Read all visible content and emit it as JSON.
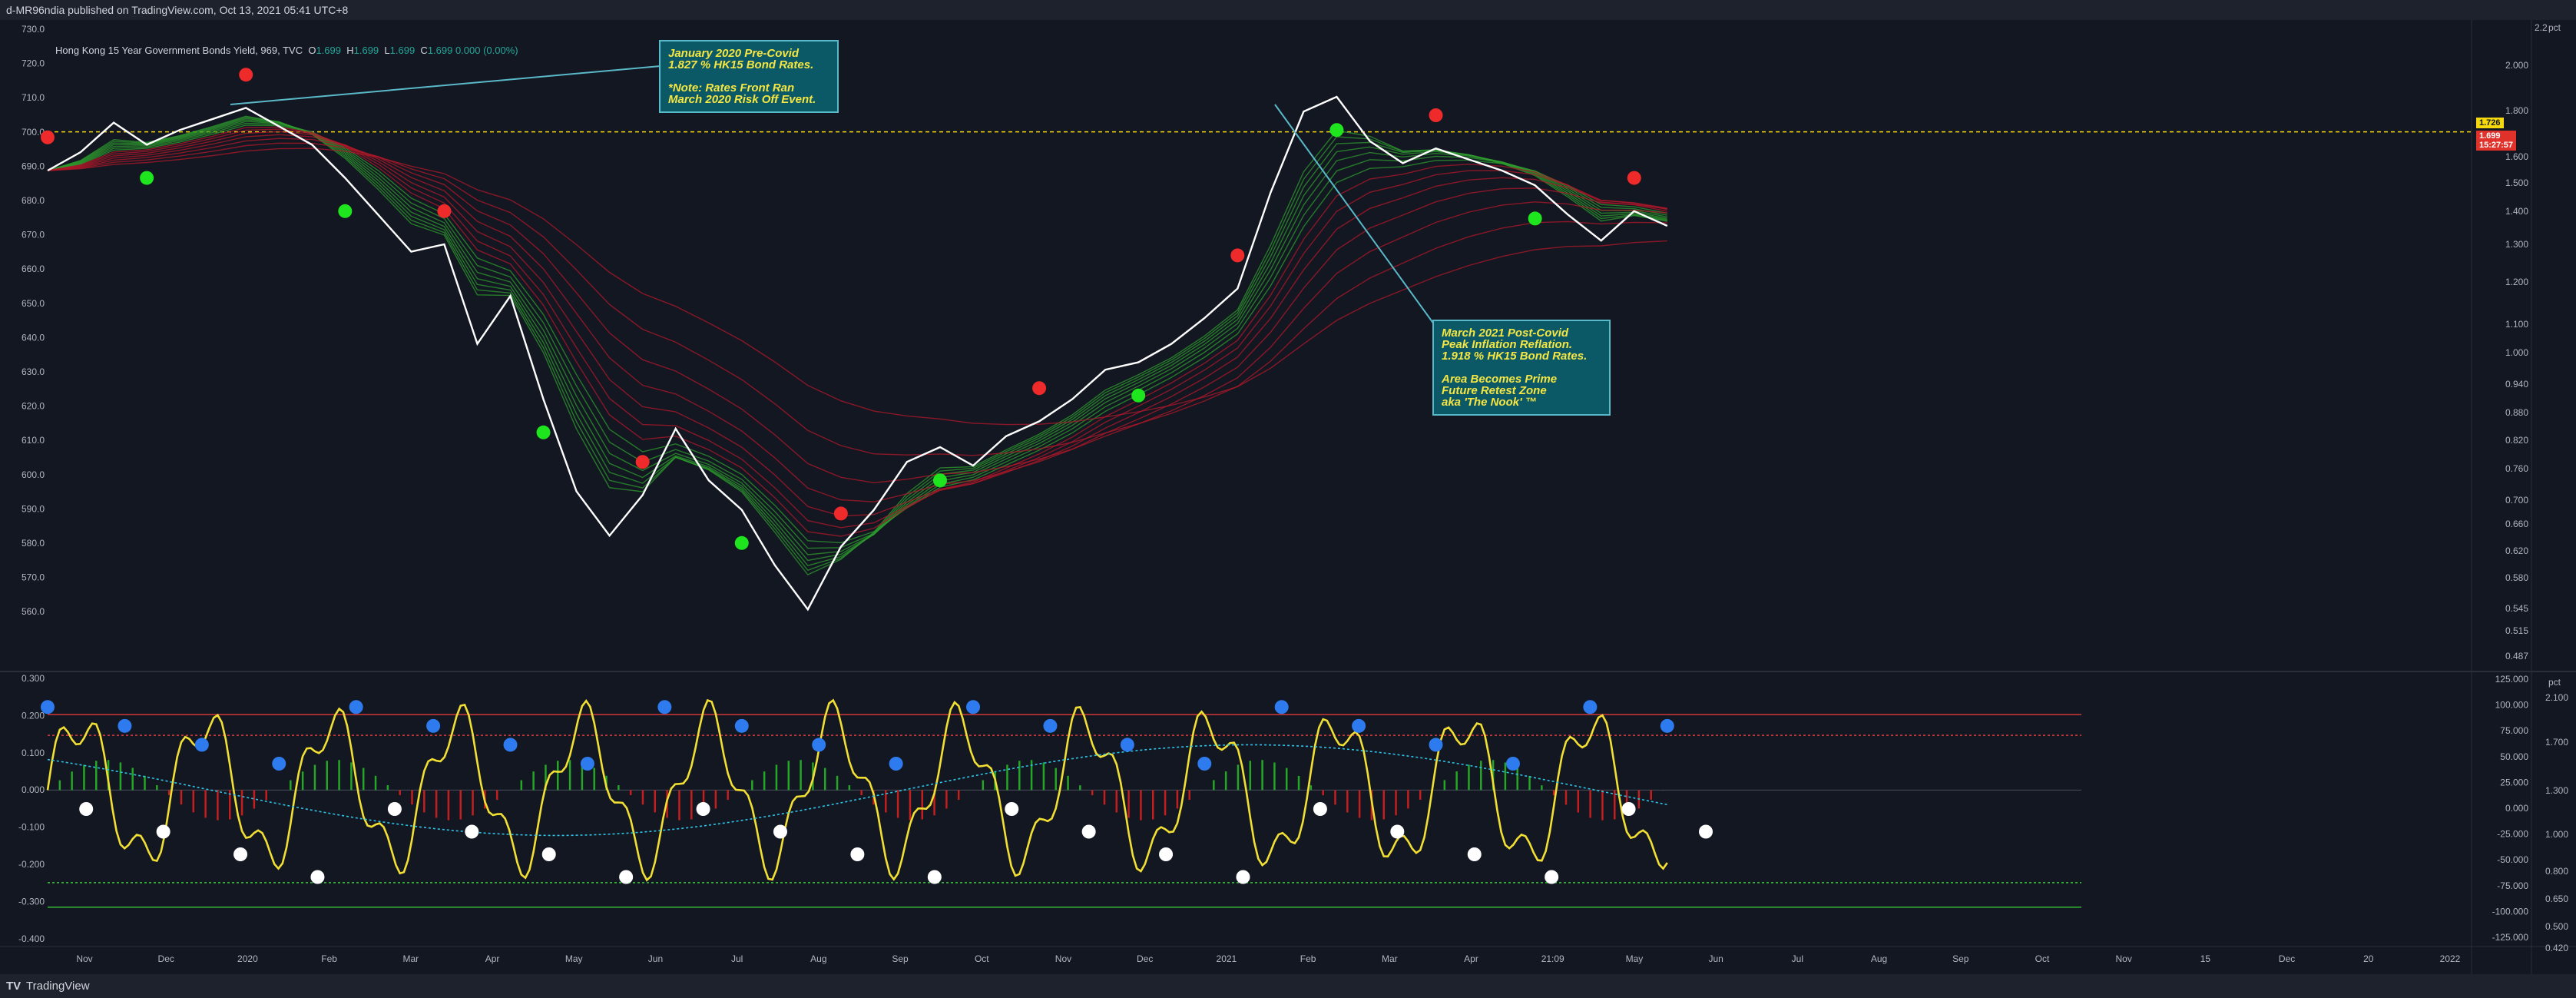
{
  "header": {
    "publish_line": "d-MR96ndia published on TradingView.com, Oct 13, 2021 05:41 UTC+8"
  },
  "legend": {
    "symbol": "Hong Kong 15 Year Government Bonds Yield, 969, TVC",
    "o_label": "O",
    "o": "1.699",
    "h_label": "H",
    "h": "1.699",
    "l_label": "L",
    "l": "1.699",
    "c_label": "C",
    "c": "1.699 0.000 (0.00%)"
  },
  "footer": {
    "logo": "TV",
    "brand": "TradingView"
  },
  "colors": {
    "background": "#131722",
    "price_line": "#ffffff",
    "ribbon_up": "#2e9c2e",
    "ribbon_down": "#b0182a",
    "bull_dot": "#1ee51e",
    "bear_dot": "#ef2a2a",
    "osc_line": "#f2df33",
    "osc_signal": "#2ec4e8",
    "blue_dot": "#2e7bef",
    "white_dot": "#ffffff"
  },
  "callouts": [
    {
      "lines": [
        "January 2020 Pre-Covid",
        "1.827 % HK15 Bond Rates.",
        "",
        "*Note: Rates Front Ran",
        "March 2020 Risk Off Event."
      ]
    },
    {
      "lines": [
        "March 2021 Post-Covid",
        "Peak Inflation Reflation.",
        "1.918 % HK15 Bond Rates.",
        "",
        "Area Becomes Prime",
        "Future Retest Zone",
        "aka 'The Nook' ™"
      ]
    }
  ],
  "price_labels": {
    "upper": "1.726",
    "current": "1.699",
    "countdown": "15:27:57"
  },
  "axis_corner": {
    "top_main": "2.2",
    "top_pct": "pct",
    "osc_pct": "pct"
  },
  "chart_data": [
    {
      "type": "line",
      "title": "",
      "x_ticks": [
        "Nov",
        "Dec",
        "2020",
        "Feb",
        "Mar",
        "Apr",
        "May",
        "Jun",
        "Jul",
        "Aug",
        "Sep",
        "Oct",
        "Nov",
        "Dec",
        "2021",
        "Feb",
        "Mar",
        "Apr",
        "21:09",
        "May",
        "Jun",
        "Jul",
        "Aug",
        "Sep",
        "Oct",
        "Nov",
        "15",
        "Dec",
        "20",
        "2022"
      ],
      "y_left_ticks": [
        "730.0",
        "720.0",
        "710.0",
        "700.0",
        "690.0",
        "680.0",
        "670.0",
        "660.0",
        "650.0",
        "640.0",
        "630.0",
        "620.0",
        "610.0",
        "600.0",
        "590.0",
        "580.0",
        "570.0",
        "560.0"
      ],
      "y_right_ticks": [
        "2.000",
        "1.800",
        "1.600",
        "1.500",
        "1.400",
        "1.300",
        "1.200",
        "1.100",
        "1.000",
        "0.940",
        "0.880",
        "0.820",
        "0.760",
        "0.700",
        "0.660",
        "0.620",
        "0.580",
        "0.545",
        "0.515",
        "0.487"
      ],
      "ylim": [
        557,
        732
      ],
      "reference_level": 702.5,
      "series": [
        {
          "x": [
            0,
            3,
            6,
            9,
            12,
            15,
            18,
            21,
            24,
            27,
            30,
            33,
            36,
            39,
            42,
            45,
            48,
            51,
            54,
            57,
            60,
            63,
            66,
            69,
            72,
            75,
            78,
            81,
            84,
            87,
            90,
            93,
            96,
            99,
            102,
            105,
            108,
            111,
            114,
            117,
            120,
            123,
            126,
            129,
            132,
            135,
            138,
            141,
            144,
            147
          ],
          "y": [
            692,
            697,
            705,
            699,
            703,
            706,
            709,
            704,
            699,
            690,
            680,
            670,
            672,
            645,
            658,
            630,
            605,
            593,
            604,
            622,
            608,
            600,
            585,
            573,
            590,
            600,
            613,
            617,
            612,
            620,
            624,
            630,
            638,
            640,
            645,
            652,
            660,
            686,
            708,
            712,
            700,
            694,
            698,
            695,
            692,
            688,
            680,
            673,
            681,
            677
          ]
        }
      ]
    },
    {
      "type": "line",
      "title": "",
      "y_left_ticks": [
        "0.300",
        "0.200",
        "0.100",
        "0.000",
        "-0.100",
        "-0.200",
        "-0.300",
        "-0.400"
      ],
      "y_mid_ticks": [
        "125.000",
        "100.000",
        "75.000",
        "50.000",
        "25.000",
        "0.000",
        "-25.000",
        "-50.000",
        "-75.000",
        "-100.000",
        "-125.000"
      ],
      "y_right_ticks": [
        "2.100",
        "1.700",
        "1.300",
        "1.000",
        "0.800",
        "0.650",
        "0.500",
        "0.420"
      ],
      "ylim": [
        -0.41,
        0.31
      ],
      "levels": [
        0.2,
        0.145,
        -0.245,
        -0.31
      ]
    }
  ]
}
